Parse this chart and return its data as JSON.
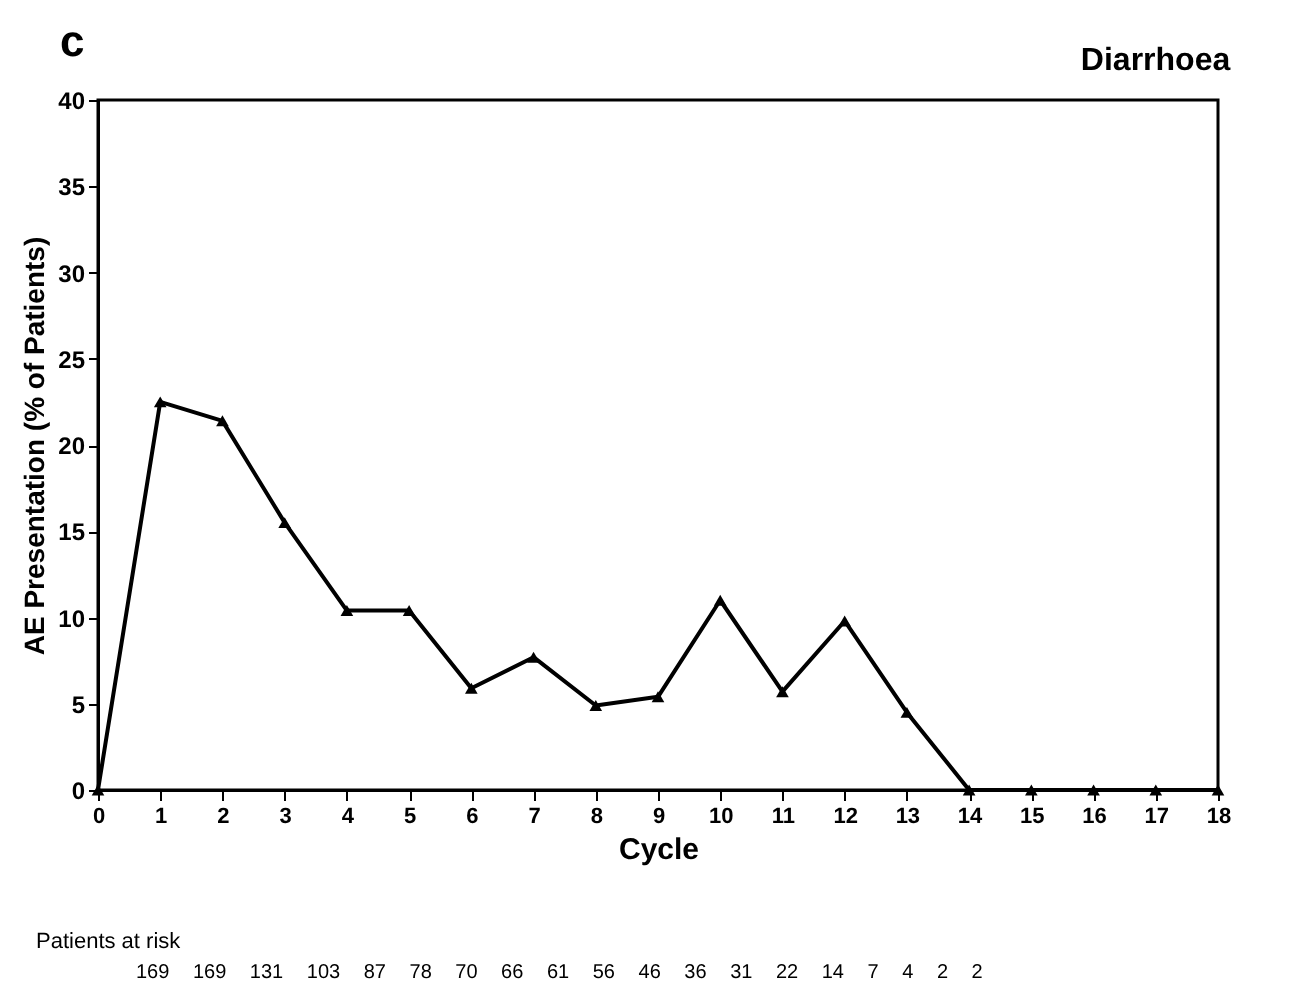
{
  "chart_data": {
    "type": "line",
    "title": "Diarrhoea",
    "xlabel": "Cycle",
    "ylabel": "AE Presentation (% of Patients)",
    "x": [
      0,
      1,
      2,
      3,
      4,
      5,
      6,
      7,
      8,
      9,
      10,
      11,
      12,
      13,
      14,
      15,
      16,
      17,
      18
    ],
    "series": [
      {
        "color": "#000000",
        "values": [
          0,
          22.5,
          21.4,
          15.5,
          10.4,
          10.4,
          5.9,
          7.7,
          4.9,
          5.4,
          11,
          5.7,
          9.8,
          4.5,
          0,
          0,
          0,
          0,
          0
        ]
      }
    ],
    "xlim": [
      0,
      18
    ],
    "xticks": [
      0,
      1,
      2,
      3,
      4,
      5,
      6,
      7,
      8,
      9,
      10,
      11,
      12,
      13,
      14,
      15,
      16,
      17,
      18
    ],
    "ylim": [
      0,
      40
    ],
    "yticks": [
      0,
      5,
      10,
      15,
      20,
      25,
      30,
      35,
      40
    ],
    "grid": false,
    "legend": false,
    "marker": "triangle",
    "line_style": "solid",
    "annotations": [
      "c",
      "Patients at risk",
      "169 169 131 103 87 78 70 66 61 56 46 36 31 22 14 7 4 2 2"
    ]
  }
}
